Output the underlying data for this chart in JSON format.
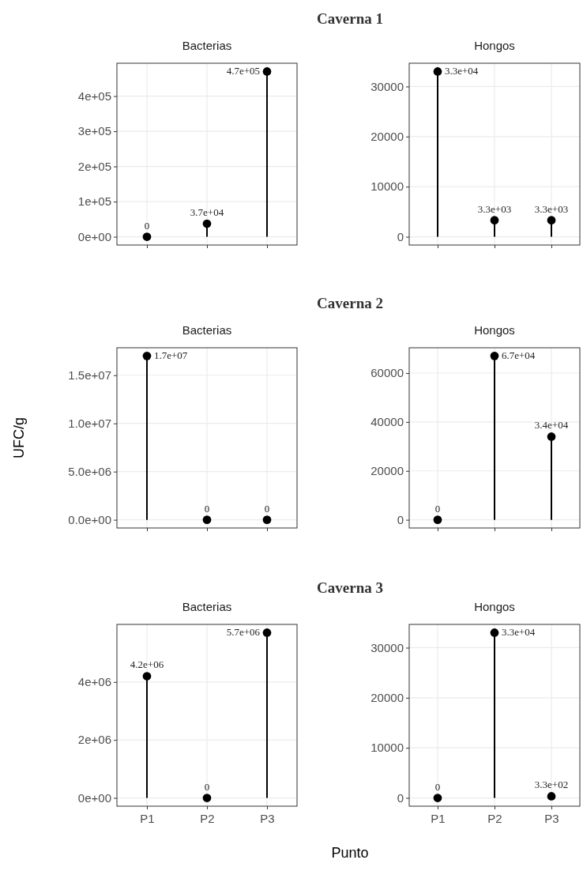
{
  "chart_data": [
    {
      "type": "lollipop",
      "title": "Bacterias",
      "annotations": [
        "Caverna 1"
      ],
      "categories": [
        null,
        null,
        null
      ],
      "values": [
        0,
        37000,
        470000
      ],
      "value_labels": [
        "0",
        "3.7e+04",
        "4.7e+05"
      ],
      "color": "#000000",
      "ylim": [
        -23500,
        493500
      ],
      "yticks": [
        {
          "value": 0,
          "label": "0e+00"
        },
        {
          "value": 100000,
          "label": "1e+05"
        },
        {
          "value": 200000,
          "label": "2e+05"
        },
        {
          "value": 300000,
          "label": "3e+05"
        },
        {
          "value": 400000,
          "label": "4e+05"
        }
      ],
      "grid": true,
      "marker": "circle",
      "tick_labels": "y"
    },
    {
      "type": "lollipop",
      "title": "Hongos",
      "categories": [
        null,
        null,
        null
      ],
      "values": [
        33000,
        3300,
        3300
      ],
      "value_labels": [
        "3.3e+04",
        "3.3e+03",
        "3.3e+03"
      ],
      "color": "#000000",
      "ylim": [
        -1650,
        34650
      ],
      "yticks": [
        0,
        10000,
        20000,
        30000
      ],
      "grid": true,
      "marker": "circle",
      "tick_labels": "y"
    },
    {
      "type": "lollipop",
      "title": "Bacterias",
      "annotations": [
        "Caverna 2"
      ],
      "ylabel": "UFC/g",
      "categories": [
        null,
        null,
        null
      ],
      "values": [
        17000000,
        0,
        0
      ],
      "value_labels": [
        "1.7e+07",
        "0",
        "0"
      ],
      "color": "#000000",
      "ylim": [
        -850000,
        17850000
      ],
      "yticks": [
        {
          "value": 0,
          "label": "0.0e+00"
        },
        {
          "value": 5000000,
          "label": "5.0e+06"
        },
        {
          "value": 10000000,
          "label": "1.0e+07"
        },
        {
          "value": 15000000,
          "label": "1.5e+07"
        }
      ],
      "grid": true,
      "marker": "circle",
      "tick_labels": "y"
    },
    {
      "type": "lollipop",
      "title": "Hongos",
      "categories": [
        null,
        null,
        null
      ],
      "values": [
        0,
        67000,
        34000
      ],
      "value_labels": [
        "0",
        "6.7e+04",
        "3.4e+04"
      ],
      "color": "#000000",
      "ylim": [
        -3350,
        70350
      ],
      "yticks": [
        0,
        20000,
        40000,
        60000
      ],
      "grid": true,
      "marker": "circle",
      "tick_labels": "y"
    },
    {
      "type": "lollipop",
      "title": "Bacterias",
      "annotations": [
        "Caverna 3"
      ],
      "xlabel": "Punto",
      "categories": [
        "P1",
        "P2",
        "P3"
      ],
      "values": [
        4200000,
        0,
        5700000
      ],
      "value_labels": [
        "4.2e+06",
        "0",
        "5.7e+06"
      ],
      "color": "#000000",
      "ylim": [
        -285000,
        5985000
      ],
      "yticks": [
        {
          "value": 0,
          "label": "0e+00"
        },
        {
          "value": 2000000,
          "label": "2e+06"
        },
        {
          "value": 4000000,
          "label": "4e+06"
        }
      ],
      "grid": true,
      "marker": "circle"
    },
    {
      "type": "lollipop",
      "title": "Hongos",
      "categories": [
        "P1",
        "P2",
        "P3"
      ],
      "values": [
        0,
        33000,
        330
      ],
      "value_labels": [
        "0",
        "3.3e+04",
        "3.3e+02"
      ],
      "color": "#000000",
      "ylim": [
        -1650,
        34650
      ],
      "yticks": [
        0,
        10000,
        20000,
        30000
      ],
      "grid": true,
      "marker": "circle"
    }
  ]
}
